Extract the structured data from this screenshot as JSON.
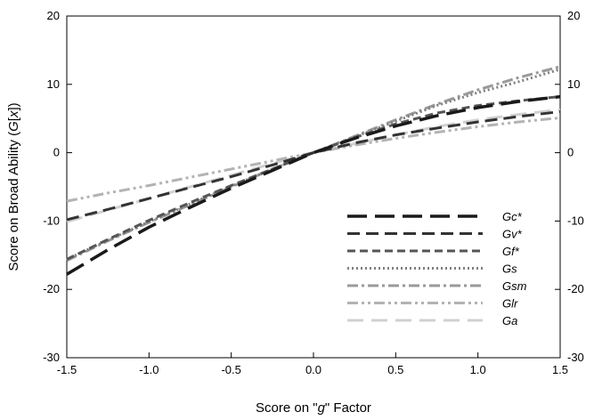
{
  "chart_data": {
    "type": "line",
    "xlabel_parts": [
      "Score on \"",
      "g",
      "\" Factor"
    ],
    "ylabel_parts": [
      "Score on Broad Ability (",
      "G",
      "[",
      "x",
      "])"
    ],
    "xlim": [
      -1.5,
      1.5
    ],
    "ylim": [
      -30,
      20
    ],
    "x_ticks": [
      "-1.5",
      "-1.0",
      "-0.5",
      "0.0",
      "0.5",
      "1.0",
      "1.5"
    ],
    "y_ticks": [
      "-30",
      "-20",
      "-10",
      "0",
      "10",
      "20"
    ],
    "secondary_y_axis": true,
    "grid": false,
    "legend_position": "lower-right",
    "x": [
      -1.5,
      -1.25,
      -1.0,
      -0.75,
      -0.5,
      -0.25,
      0.0,
      0.25,
      0.5,
      0.75,
      1.0,
      1.25,
      1.5
    ],
    "series": [
      {
        "name": "Gc*",
        "color": "#1a1a1a",
        "dash": "long-dash",
        "values": [
          -17.8,
          -14.2,
          -10.9,
          -8.0,
          -5.2,
          -2.6,
          0.0,
          2.1,
          3.9,
          5.4,
          6.6,
          7.5,
          8.2
        ]
      },
      {
        "name": "Gv*",
        "color": "#333333",
        "dash": "dash",
        "values": [
          -9.8,
          -8.3,
          -6.7,
          -5.1,
          -3.5,
          -1.8,
          0.0,
          1.4,
          2.6,
          3.6,
          4.5,
          5.3,
          6.0
        ]
      },
      {
        "name": "Gf*",
        "color": "#555555",
        "dash": "short-dash",
        "values": [
          -15.6,
          -12.7,
          -9.9,
          -7.3,
          -4.8,
          -2.4,
          0.0,
          2.2,
          4.2,
          5.8,
          6.9,
          7.6,
          8.2
        ]
      },
      {
        "name": "Gs",
        "color": "#808080",
        "dash": "dot",
        "values": [
          -15.6,
          -12.8,
          -10.1,
          -7.5,
          -4.9,
          -2.4,
          0.0,
          2.3,
          4.6,
          6.9,
          8.8,
          10.4,
          12.2
        ]
      },
      {
        "name": "Gsm",
        "color": "#999999",
        "dash": "dash-dot",
        "values": [
          -15.8,
          -12.9,
          -10.2,
          -7.6,
          -5.0,
          -2.4,
          0.0,
          2.4,
          4.8,
          7.1,
          9.2,
          11.0,
          12.6
        ]
      },
      {
        "name": "Glr",
        "color": "#b3b3b3",
        "dash": "dash-dot-dot",
        "values": [
          -7.1,
          -5.9,
          -4.8,
          -3.6,
          -2.4,
          -1.2,
          0.0,
          1.1,
          2.1,
          3.0,
          3.8,
          4.5,
          5.1
        ]
      },
      {
        "name": "Ga",
        "color": "#d0d0d0",
        "dash": "long-dash-light",
        "values": [
          -10.1,
          -8.4,
          -6.7,
          -5.0,
          -3.3,
          -1.6,
          0.0,
          1.3,
          2.6,
          3.8,
          4.8,
          5.6,
          6.3
        ]
      }
    ]
  }
}
